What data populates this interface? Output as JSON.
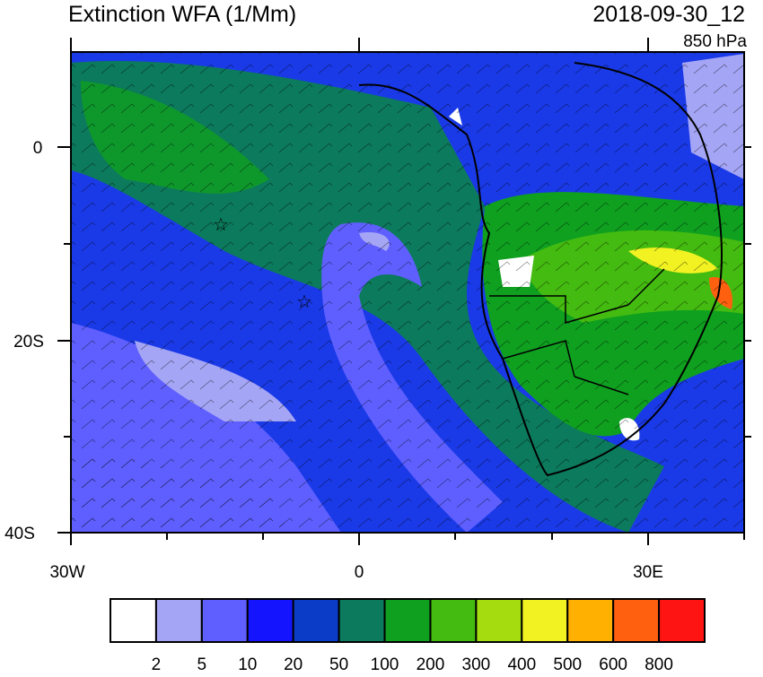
{
  "header": {
    "title": "Extinction WFA (1/Mm)",
    "date": "2018-09-30_12",
    "level": "850 hPa"
  },
  "map": {
    "lat_labels": [
      "0",
      "20S",
      "40S"
    ],
    "lon_labels": [
      "30W",
      "0",
      "30E"
    ]
  },
  "colorbar": {
    "colors": [
      "#ffffff",
      "#a5a5f5",
      "#5f5fff",
      "#1414ff",
      "#0a3cc8",
      "#0c7a5c",
      "#0fa020",
      "#44bb10",
      "#a4dc10",
      "#f2f222",
      "#ffb000",
      "#ff6010",
      "#ff1414"
    ],
    "labels": [
      2,
      5,
      10,
      20,
      50,
      100,
      200,
      300,
      400,
      500,
      600,
      800
    ]
  }
}
